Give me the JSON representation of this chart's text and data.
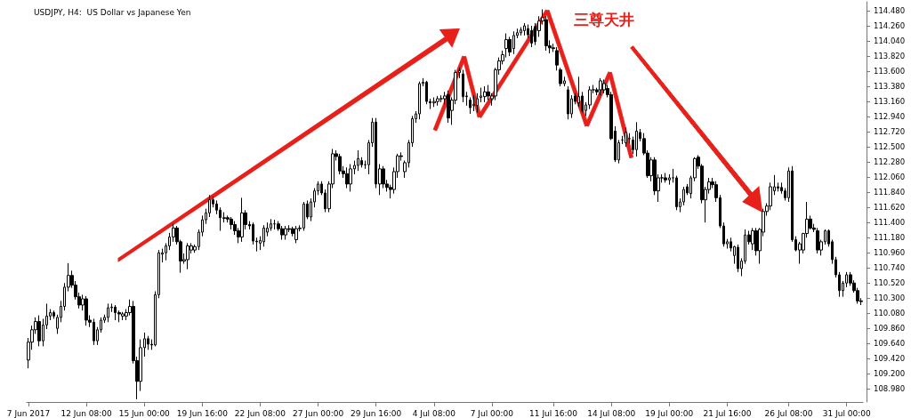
{
  "chart_data": {
    "type": "candlestick",
    "title": "USDJPY, H4:  US Dollar vs Japanese Yen",
    "annotations": [
      "三尊天井"
    ],
    "categories": [
      "7 Jun 2017",
      null,
      null,
      null,
      null,
      null,
      null,
      null,
      null,
      null,
      null,
      null,
      null,
      null,
      null,
      null,
      "12 Jun 08:00",
      null,
      null,
      null,
      null,
      null,
      null,
      null,
      null,
      null,
      null,
      null,
      null,
      null,
      null,
      null,
      "15 Jun 00:00",
      null,
      null,
      null,
      null,
      null,
      null,
      null,
      null,
      null,
      null,
      null,
      null,
      null,
      null,
      null,
      "19 Jun 16:00",
      null,
      null,
      null,
      null,
      null,
      null,
      null,
      null,
      null,
      null,
      null,
      null,
      null,
      null,
      null,
      "22 Jun 08:00",
      null,
      null,
      null,
      null,
      null,
      null,
      null,
      null,
      null,
      null,
      null,
      null,
      null,
      null,
      null,
      "27 Jun 00:00",
      null,
      null,
      null,
      null,
      null,
      null,
      null,
      null,
      null,
      null,
      null,
      null,
      null,
      null,
      null,
      "29 Jun 16:00",
      null,
      null,
      null,
      null,
      null,
      null,
      null,
      null,
      null,
      null,
      null,
      null,
      null,
      null,
      null,
      "4 Jul 08:00",
      null,
      null,
      null,
      null,
      null,
      null,
      null,
      null,
      null,
      null,
      null,
      null,
      null,
      null,
      null,
      "7 Jul 00:00",
      null,
      null,
      null,
      null,
      null,
      null,
      null,
      null,
      null,
      null,
      null,
      null,
      null,
      null,
      null,
      null,
      "11 Jul 16:00",
      null,
      null,
      null,
      null,
      null,
      null,
      null,
      null,
      null,
      null,
      null,
      null,
      null,
      null,
      null,
      "14 Jul 08:00",
      null,
      null,
      null,
      null,
      null,
      null,
      null,
      null,
      null,
      null,
      null,
      null,
      null,
      null,
      null,
      "19 Jul 00:00",
      null,
      null,
      null,
      null,
      null,
      null,
      null,
      null,
      null,
      null,
      null,
      null,
      null,
      null,
      null,
      "21 Jul 16:00",
      null,
      null,
      null,
      null,
      null,
      null,
      null,
      null,
      null,
      null,
      null,
      null,
      null,
      null,
      null,
      null,
      "26 Jul 08:00",
      null,
      null,
      null,
      null,
      null,
      null,
      null,
      null,
      null,
      null,
      null,
      null,
      null,
      null,
      null,
      "31 Jul 00:00",
      null,
      null,
      null,
      null
    ],
    "ohlc": [
      [
        109.4,
        109.72,
        109.28,
        109.66
      ],
      [
        109.66,
        109.9,
        109.55,
        109.84
      ],
      [
        109.84,
        110.02,
        109.78,
        109.96
      ],
      [
        109.96,
        110.05,
        109.6,
        109.68
      ],
      [
        109.68,
        110.0,
        109.6,
        109.91
      ],
      [
        109.91,
        110.22,
        109.85,
        110.04
      ],
      [
        110.04,
        110.14,
        109.98,
        110.09
      ],
      [
        110.09,
        110.12,
        110.0,
        110.04
      ],
      [
        109.86,
        110.06,
        109.78,
        110.02
      ],
      [
        110.02,
        110.26,
        109.95,
        110.18
      ],
      [
        110.18,
        110.52,
        110.12,
        110.46
      ],
      [
        110.46,
        110.81,
        110.4,
        110.63
      ],
      [
        110.63,
        110.7,
        110.45,
        110.49
      ],
      [
        110.49,
        110.55,
        110.28,
        110.32
      ],
      [
        110.32,
        110.38,
        110.15,
        110.2
      ],
      [
        110.2,
        110.35,
        110.12,
        110.29
      ],
      [
        110.29,
        110.33,
        109.9,
        109.98
      ],
      [
        109.98,
        110.05,
        109.88,
        109.95
      ],
      [
        109.95,
        110.0,
        109.62,
        109.68
      ],
      [
        109.68,
        109.88,
        109.62,
        109.84
      ],
      [
        109.84,
        110.02,
        109.8,
        109.98
      ],
      [
        109.98,
        110.06,
        109.94,
        110.02
      ],
      [
        110.02,
        110.22,
        109.95,
        110.16
      ],
      [
        110.16,
        110.22,
        110.1,
        110.17
      ],
      [
        110.17,
        110.2,
        109.98,
        110.09
      ],
      [
        110.09,
        110.12,
        109.95,
        110.07
      ],
      [
        110.04,
        110.1,
        109.98,
        110.07
      ],
      [
        110.04,
        110.14,
        109.98,
        110.09
      ],
      [
        110.09,
        110.28,
        110.05,
        110.18
      ],
      [
        110.18,
        110.26,
        109.35,
        109.39
      ],
      [
        109.39,
        109.45,
        108.83,
        109.09
      ],
      [
        109.09,
        109.7,
        108.95,
        109.58
      ],
      [
        109.58,
        109.8,
        109.45,
        109.71
      ],
      [
        109.71,
        109.75,
        109.55,
        109.63
      ],
      [
        109.63,
        109.7,
        109.55,
        109.62
      ],
      [
        109.62,
        110.4,
        109.6,
        110.35
      ],
      [
        110.35,
        111.0,
        110.3,
        110.96
      ],
      [
        110.94,
        111.02,
        110.82,
        110.96
      ],
      [
        110.96,
        111.1,
        110.85,
        111.06
      ],
      [
        111.06,
        111.25,
        111.0,
        111.19
      ],
      [
        111.19,
        111.38,
        111.12,
        111.32
      ],
      [
        111.32,
        111.35,
        111.08,
        111.12
      ],
      [
        111.12,
        111.15,
        110.67,
        110.84
      ],
      [
        110.84,
        110.95,
        110.8,
        110.86
      ],
      [
        110.86,
        111.1,
        110.72,
        111.06
      ],
      [
        111.0,
        111.1,
        110.95,
        111.06
      ],
      [
        111.0,
        111.08,
        110.96,
        111.05
      ],
      [
        111.05,
        111.3,
        111.0,
        111.26
      ],
      [
        111.26,
        111.5,
        111.2,
        111.44
      ],
      [
        111.44,
        111.6,
        111.38,
        111.54
      ],
      [
        111.54,
        111.8,
        111.48,
        111.73
      ],
      [
        111.73,
        111.78,
        111.62,
        111.67
      ],
      [
        111.67,
        111.72,
        111.52,
        111.58
      ],
      [
        111.58,
        111.62,
        111.28,
        111.47
      ],
      [
        111.47,
        111.55,
        111.4,
        111.46
      ],
      [
        111.47,
        111.5,
        111.4,
        111.45
      ],
      [
        111.45,
        111.48,
        111.3,
        111.37
      ],
      [
        111.37,
        111.42,
        111.22,
        111.28
      ],
      [
        111.28,
        111.32,
        111.1,
        111.19
      ],
      [
        111.19,
        111.76,
        111.12,
        111.54
      ],
      [
        111.54,
        111.58,
        111.3,
        111.37
      ],
      [
        111.37,
        111.42,
        111.3,
        111.35
      ],
      [
        111.37,
        111.4,
        111.08,
        111.13
      ],
      [
        111.13,
        111.18,
        110.98,
        111.12
      ],
      [
        111.1,
        111.2,
        111.0,
        111.14
      ],
      [
        111.12,
        111.36,
        111.05,
        111.32
      ],
      [
        111.26,
        111.4,
        111.2,
        111.32
      ],
      [
        111.32,
        111.45,
        111.28,
        111.38
      ],
      [
        111.38,
        111.44,
        111.3,
        111.38
      ],
      [
        111.38,
        111.42,
        111.28,
        111.31
      ],
      [
        111.31,
        111.35,
        111.15,
        111.22
      ],
      [
        111.22,
        111.35,
        111.15,
        111.31
      ],
      [
        111.31,
        111.36,
        111.26,
        111.3
      ],
      [
        111.31,
        111.34,
        111.2,
        111.24
      ],
      [
        111.15,
        111.35,
        111.1,
        111.31
      ],
      [
        111.31,
        111.36,
        111.27,
        111.32
      ],
      [
        111.32,
        111.7,
        111.28,
        111.67
      ],
      [
        111.67,
        111.72,
        111.45,
        111.48
      ],
      [
        111.48,
        111.75,
        111.42,
        111.7
      ],
      [
        111.7,
        111.9,
        111.62,
        111.86
      ],
      [
        111.86,
        112.0,
        111.8,
        111.96
      ],
      [
        111.96,
        112.0,
        111.8,
        111.83
      ],
      [
        111.83,
        111.88,
        111.55,
        111.6
      ],
      [
        111.6,
        112.0,
        111.55,
        111.96
      ],
      [
        111.96,
        112.47,
        111.9,
        112.4
      ],
      [
        112.4,
        112.45,
        112.3,
        112.36
      ],
      [
        112.36,
        112.4,
        112.1,
        112.15
      ],
      [
        112.15,
        112.22,
        112.05,
        112.11
      ],
      [
        112.11,
        112.2,
        111.9,
        111.96
      ],
      [
        111.96,
        112.25,
        111.85,
        112.18
      ],
      [
        112.18,
        112.3,
        112.1,
        112.23
      ],
      [
        112.23,
        112.45,
        112.15,
        112.33
      ],
      [
        112.3,
        112.35,
        112.2,
        112.24
      ],
      [
        112.24,
        112.3,
        112.18,
        112.24
      ],
      [
        112.24,
        112.6,
        112.1,
        112.56
      ],
      [
        112.56,
        112.92,
        112.5,
        112.86
      ],
      [
        112.86,
        112.92,
        111.9,
        111.96
      ],
      [
        111.96,
        112.25,
        111.8,
        112.18
      ],
      [
        112.18,
        112.22,
        111.9,
        111.96
      ],
      [
        111.96,
        112.02,
        111.85,
        111.91
      ],
      [
        111.91,
        111.95,
        111.75,
        111.88
      ],
      [
        111.88,
        112.2,
        111.82,
        112.14
      ],
      [
        112.14,
        112.4,
        112.05,
        112.37
      ],
      [
        112.37,
        112.42,
        112.3,
        112.36
      ],
      [
        112.14,
        112.3,
        112.05,
        112.27
      ],
      [
        112.27,
        112.6,
        112.2,
        112.56
      ],
      [
        112.56,
        112.95,
        112.5,
        112.91
      ],
      [
        112.91,
        113.02,
        112.85,
        112.98
      ],
      [
        112.98,
        113.45,
        112.9,
        113.42
      ],
      [
        113.42,
        113.5,
        113.38,
        113.44
      ],
      [
        113.44,
        113.46,
        113.12,
        113.16
      ],
      [
        113.16,
        113.2,
        113.05,
        113.14
      ],
      [
        113.14,
        113.22,
        113.08,
        113.16
      ],
      [
        113.16,
        113.24,
        113.1,
        113.2
      ],
      [
        113.2,
        113.25,
        113.15,
        113.2
      ],
      [
        113.2,
        113.3,
        113.12,
        113.24
      ],
      [
        113.26,
        113.32,
        112.85,
        112.92
      ],
      [
        113.03,
        113.22,
        112.82,
        113.18
      ],
      [
        113.18,
        113.62,
        113.12,
        113.58
      ],
      [
        113.58,
        113.65,
        113.5,
        113.61
      ],
      [
        113.56,
        113.62,
        113.15,
        113.23
      ],
      [
        113.23,
        113.3,
        113.1,
        113.24
      ],
      [
        113.18,
        113.22,
        112.98,
        113.07
      ],
      [
        113.1,
        113.25,
        113.02,
        113.12
      ],
      [
        113.1,
        113.28,
        113.0,
        113.2
      ],
      [
        113.22,
        113.36,
        113.15,
        113.24
      ],
      [
        113.23,
        113.38,
        113.15,
        113.3
      ],
      [
        113.3,
        113.4,
        113.18,
        113.24
      ],
      [
        113.2,
        113.28,
        113.1,
        113.24
      ],
      [
        113.24,
        113.65,
        113.18,
        113.62
      ],
      [
        113.62,
        113.8,
        113.55,
        113.75
      ],
      [
        113.75,
        113.9,
        113.7,
        113.84
      ],
      [
        113.93,
        114.15,
        113.8,
        114.06
      ],
      [
        114.06,
        114.1,
        113.82,
        113.88
      ],
      [
        113.93,
        114.18,
        113.85,
        114.12
      ],
      [
        114.12,
        114.22,
        114.08,
        114.16
      ],
      [
        114.16,
        114.24,
        114.12,
        114.2
      ],
      [
        114.19,
        114.3,
        114.12,
        114.26
      ],
      [
        114.22,
        114.28,
        114.08,
        114.13
      ],
      [
        114.19,
        114.26,
        113.95,
        114.01
      ],
      [
        114.25,
        114.3,
        113.98,
        114.03
      ],
      [
        114.19,
        114.4,
        114.1,
        114.33
      ],
      [
        114.33,
        114.5,
        114.28,
        114.38
      ],
      [
        114.35,
        114.4,
        113.9,
        113.97
      ],
      [
        113.97,
        114.05,
        113.86,
        113.94
      ],
      [
        113.94,
        114.0,
        113.88,
        113.93
      ],
      [
        113.9,
        113.95,
        113.61,
        113.69
      ],
      [
        113.62,
        113.65,
        113.38,
        113.42
      ],
      [
        113.42,
        113.52,
        113.38,
        113.46
      ],
      [
        113.33,
        113.38,
        112.9,
        112.98
      ],
      [
        112.98,
        113.25,
        112.92,
        113.2
      ],
      [
        113.24,
        113.28,
        113.12,
        113.16
      ],
      [
        113.14,
        113.52,
        113.08,
        113.23
      ],
      [
        113.24,
        113.3,
        113.0,
        113.03
      ],
      [
        113.03,
        113.15,
        112.95,
        113.11
      ],
      [
        113.11,
        113.38,
        113.05,
        113.33
      ],
      [
        113.33,
        113.4,
        113.28,
        113.33
      ],
      [
        113.33,
        113.36,
        113.25,
        113.3
      ],
      [
        113.33,
        113.5,
        113.25,
        113.46
      ],
      [
        113.33,
        113.48,
        113.28,
        113.42
      ],
      [
        113.35,
        113.4,
        113.22,
        113.26
      ],
      [
        113.26,
        113.3,
        112.6,
        112.62
      ],
      [
        112.73,
        112.8,
        112.28,
        112.31
      ],
      [
        112.31,
        112.6,
        112.26,
        112.56
      ],
      [
        112.6,
        112.66,
        112.54,
        112.6
      ],
      [
        112.56,
        112.78,
        112.5,
        112.71
      ],
      [
        112.62,
        112.7,
        112.55,
        112.62
      ],
      [
        112.6,
        112.65,
        112.4,
        112.46
      ],
      [
        112.46,
        112.86,
        112.36,
        112.73
      ],
      [
        112.71,
        112.76,
        112.58,
        112.62
      ],
      [
        112.62,
        112.7,
        112.38,
        112.41
      ],
      [
        112.41,
        112.45,
        112.05,
        112.08
      ],
      [
        112.08,
        112.35,
        112.0,
        112.31
      ],
      [
        112.31,
        112.35,
        111.8,
        111.86
      ],
      [
        111.86,
        112.1,
        111.7,
        112.05
      ],
      [
        112.05,
        112.1,
        111.98,
        112.05
      ],
      [
        112.05,
        112.12,
        111.98,
        112.02
      ],
      [
        112.02,
        112.1,
        111.95,
        112.05
      ],
      [
        112.05,
        112.18,
        111.98,
        112.05
      ],
      [
        112.05,
        112.08,
        111.58,
        111.63
      ],
      [
        111.63,
        111.75,
        111.55,
        111.7
      ],
      [
        111.7,
        111.92,
        111.65,
        111.88
      ],
      [
        111.92,
        111.96,
        111.8,
        111.83
      ],
      [
        111.82,
        112.08,
        111.75,
        112.05
      ],
      [
        112.05,
        112.35,
        112.0,
        112.33
      ],
      [
        112.35,
        112.38,
        112.18,
        112.22
      ],
      [
        112.22,
        112.25,
        111.68,
        111.73
      ],
      [
        111.73,
        111.92,
        111.4,
        111.88
      ],
      [
        111.88,
        112.05,
        111.82,
        111.99
      ],
      [
        111.99,
        112.05,
        111.9,
        111.95
      ],
      [
        111.95,
        112.0,
        111.7,
        111.76
      ],
      [
        111.76,
        111.8,
        111.32,
        111.35
      ],
      [
        111.35,
        111.4,
        111.05,
        111.09
      ],
      [
        111.09,
        111.16,
        111.02,
        111.12
      ],
      [
        111.12,
        111.18,
        110.98,
        111.03
      ],
      [
        110.92,
        111.06,
        110.8,
        111.05
      ],
      [
        111.04,
        111.08,
        110.68,
        110.73
      ],
      [
        110.73,
        110.88,
        110.62,
        110.84
      ],
      [
        110.84,
        111.3,
        110.8,
        111.22
      ],
      [
        111.22,
        111.28,
        111.08,
        111.12
      ],
      [
        111.09,
        111.32,
        111.0,
        111.28
      ],
      [
        111.28,
        111.32,
        110.92,
        110.99
      ],
      [
        110.99,
        111.32,
        110.8,
        111.3
      ],
      [
        111.26,
        111.6,
        111.2,
        111.56
      ],
      [
        111.56,
        111.68,
        111.5,
        111.64
      ],
      [
        111.64,
        111.98,
        111.58,
        111.92
      ],
      [
        111.86,
        112.09,
        111.8,
        111.92
      ],
      [
        111.92,
        111.98,
        111.85,
        111.9
      ],
      [
        111.91,
        111.98,
        111.82,
        111.86
      ],
      [
        111.86,
        111.9,
        111.72,
        111.76
      ],
      [
        111.76,
        112.2,
        111.7,
        112.15
      ],
      [
        112.15,
        112.22,
        111.12,
        111.15
      ],
      [
        111.15,
        111.2,
        110.98,
        111.0
      ],
      [
        111.0,
        111.12,
        110.8,
        111.09
      ],
      [
        111.0,
        111.25,
        110.95,
        111.24
      ],
      [
        111.24,
        111.7,
        111.18,
        111.45
      ],
      [
        111.45,
        111.5,
        111.3,
        111.32
      ],
      [
        111.32,
        111.38,
        111.26,
        111.3
      ],
      [
        111.28,
        111.32,
        110.95,
        111.0
      ],
      [
        111.0,
        111.15,
        110.92,
        111.12
      ],
      [
        111.12,
        111.3,
        111.08,
        111.28
      ],
      [
        111.28,
        111.3,
        111.05,
        111.09
      ],
      [
        111.12,
        111.15,
        110.8,
        110.86
      ],
      [
        110.86,
        110.9,
        110.6,
        110.64
      ],
      [
        110.64,
        110.68,
        110.32,
        110.41
      ],
      [
        110.41,
        110.55,
        110.32,
        110.52
      ],
      [
        110.52,
        110.68,
        110.46,
        110.64
      ],
      [
        110.64,
        110.68,
        110.48,
        110.52
      ],
      [
        110.52,
        110.56,
        110.38,
        110.41
      ],
      [
        110.41,
        110.45,
        110.22,
        110.26
      ],
      [
        110.26,
        110.3,
        110.2,
        110.25
      ]
    ],
    "ylim": [
      108.79,
      114.61
    ],
    "yticks": [
      {
        "value": 108.98,
        "label": "108.980"
      },
      {
        "value": 109.2,
        "label": "109.200"
      },
      {
        "value": 109.42,
        "label": "109.420"
      },
      {
        "value": 109.64,
        "label": "109.640"
      },
      {
        "value": 109.86,
        "label": "109.860"
      },
      {
        "value": 110.08,
        "label": "110.080"
      },
      {
        "value": 110.3,
        "label": "110.300"
      },
      {
        "value": 110.52,
        "label": "110.520"
      },
      {
        "value": 110.74,
        "label": "110.740"
      },
      {
        "value": 110.96,
        "label": "110.960"
      },
      {
        "value": 111.18,
        "label": "111.180"
      },
      {
        "value": 111.4,
        "label": "111.400"
      },
      {
        "value": 111.62,
        "label": "111.620"
      },
      {
        "value": 111.84,
        "label": "111.840"
      },
      {
        "value": 112.06,
        "label": "112.060"
      },
      {
        "value": 112.28,
        "label": "112.280"
      },
      {
        "value": 112.5,
        "label": "112.500"
      },
      {
        "value": 112.72,
        "label": "112.720"
      },
      {
        "value": 112.94,
        "label": "112.940"
      },
      {
        "value": 113.16,
        "label": "113.160"
      },
      {
        "value": 113.38,
        "label": "113.380"
      },
      {
        "value": 113.6,
        "label": "113.600"
      },
      {
        "value": 113.82,
        "label": "113.820"
      },
      {
        "value": 114.04,
        "label": "114.040"
      },
      {
        "value": 114.26,
        "label": "114.260"
      },
      {
        "value": 114.48,
        "label": "114.480"
      }
    ]
  }
}
